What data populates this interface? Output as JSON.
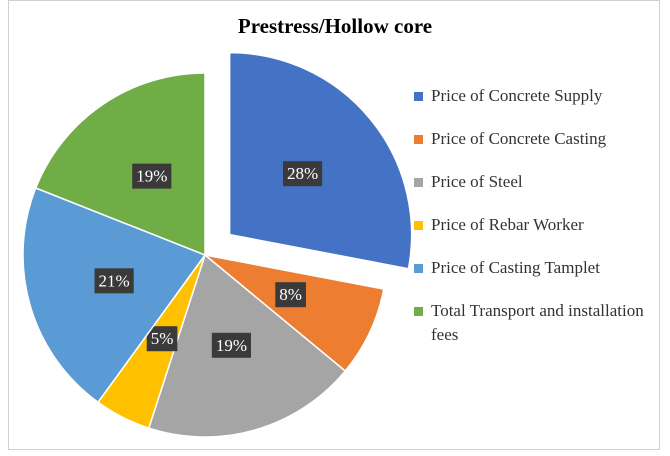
{
  "chart_data": {
    "type": "pie",
    "title": "Prestress/Hollow core",
    "categories": [
      "Price of Concrete Supply",
      "Price of Concrete Casting",
      "Price of Steel",
      "Price of Rebar Worker",
      "Price of Casting Tamplet",
      "Total Transport and installation fees"
    ],
    "values": [
      28,
      8,
      19,
      5,
      21,
      19
    ],
    "value_labels": [
      "28%",
      "8%",
      "19%",
      "5%",
      "21%",
      "19%"
    ],
    "colors": [
      "#4472c4",
      "#ed7d31",
      "#a5a5a5",
      "#ffc000",
      "#5b9bd5",
      "#70ad47"
    ],
    "explode": [
      true,
      false,
      false,
      false,
      false,
      false
    ],
    "legend": "right"
  }
}
